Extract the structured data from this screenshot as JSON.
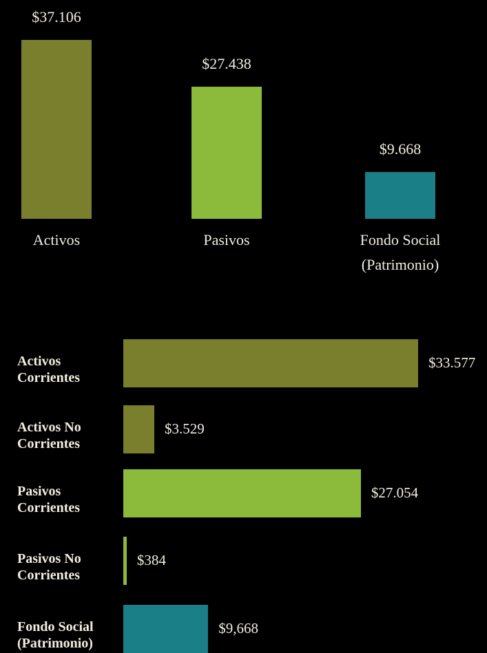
{
  "chart_data": [
    {
      "type": "bar",
      "categories": [
        "Activos",
        "Pasivos",
        "Fondo Social (Patrimonio)"
      ],
      "values": [
        37106,
        27438,
        9668
      ],
      "value_labels": [
        "$37.106",
        "$27.438",
        "$9.668"
      ],
      "colors": [
        "#7a7f2d",
        "#8cbb3b",
        "#1a7f87"
      ]
    },
    {
      "type": "hbar",
      "categories": [
        "Activos Corrientes",
        "Activos No Corrientes",
        "Pasivos Corrientes",
        "Pasivos No Corrientes",
        "Fondo Social (Patrimonio)"
      ],
      "values": [
        33577,
        3529,
        27054,
        384,
        9668
      ],
      "value_labels": [
        "$33.577",
        "$3.529",
        "$27.054",
        "$384",
        "$9,668"
      ],
      "colors": [
        "#7a7f2d",
        "#7a7f2d",
        "#8cbb3b",
        "#8cbb3b",
        "#1a7f87"
      ]
    }
  ]
}
